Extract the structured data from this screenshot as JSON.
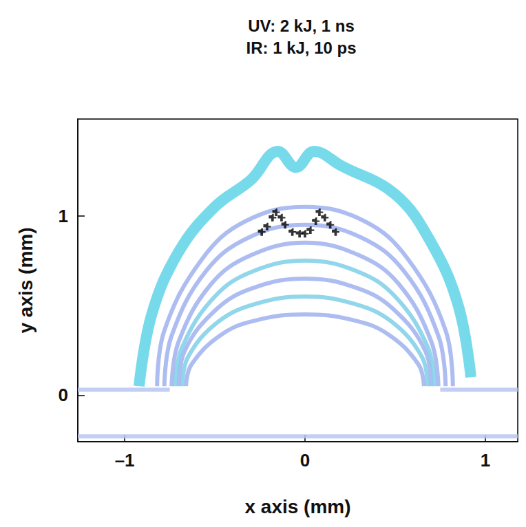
{
  "chart_data": {
    "type": "line",
    "title": "UV: 2 kJ, 1 ns",
    "subtitle": "IR: 1 kJ, 10 ps",
    "x_label": "x axis (mm)",
    "y_label": "y axis (mm)",
    "xlim": [
      -1.26,
      1.18
    ],
    "ylim": [
      -0.26,
      1.54
    ],
    "xticks": [
      {
        "value": -1,
        "label": "–1"
      },
      0,
      1
    ],
    "yticks": [
      0,
      1
    ],
    "grid": false,
    "series": [
      {
        "type": "line",
        "color": "#b9c6f2",
        "line_style": "solid",
        "x": [
          -1.26,
          -0.75
        ],
        "y": [
          0.03,
          0.03
        ]
      },
      {
        "type": "line",
        "color": "#b9c6f2",
        "line_style": "solid",
        "x": [
          0.75,
          1.18
        ],
        "y": [
          0.03,
          0.03
        ]
      },
      {
        "type": "line",
        "color": "#b9c6f2",
        "line_style": "solid",
        "x": [
          -1.26,
          1.18
        ],
        "y": [
          -0.23,
          -0.23
        ]
      },
      {
        "type": "line",
        "color": "#9fb2ee",
        "line_style": "solid",
        "x": [
          -0.66,
          -0.63,
          -0.46,
          -0.26,
          0,
          0.26,
          0.46,
          0.63,
          0.66
        ],
        "y": [
          0.05,
          0.17,
          0.34,
          0.42,
          0.45,
          0.42,
          0.34,
          0.17,
          0.05
        ]
      },
      {
        "type": "line",
        "color": "#7fcfe8",
        "line_style": "solid",
        "x": [
          -0.68,
          -0.65,
          -0.48,
          -0.27,
          0,
          0.27,
          0.48,
          0.65,
          0.68
        ],
        "y": [
          0.05,
          0.21,
          0.41,
          0.51,
          0.55,
          0.51,
          0.41,
          0.21,
          0.05
        ]
      },
      {
        "type": "line",
        "color": "#9fb2ee",
        "line_style": "solid",
        "x": [
          -0.7,
          -0.67,
          -0.49,
          -0.28,
          0,
          0.28,
          0.49,
          0.67,
          0.7
        ],
        "y": [
          0.05,
          0.24,
          0.48,
          0.6,
          0.65,
          0.6,
          0.48,
          0.24,
          0.05
        ]
      },
      {
        "type": "line",
        "color": "#7fcfe8",
        "line_style": "solid",
        "x": [
          -0.72,
          -0.68,
          -0.5,
          -0.29,
          0,
          0.29,
          0.5,
          0.68,
          0.72
        ],
        "y": [
          0.05,
          0.27,
          0.55,
          0.69,
          0.75,
          0.69,
          0.55,
          0.27,
          0.05
        ]
      },
      {
        "type": "line",
        "color": "#9fb2ee",
        "line_style": "solid",
        "x": [
          -0.74,
          -0.7,
          -0.52,
          -0.3,
          0,
          0.3,
          0.52,
          0.7,
          0.74
        ],
        "y": [
          0.05,
          0.3,
          0.62,
          0.78,
          0.85,
          0.78,
          0.62,
          0.3,
          0.05
        ]
      },
      {
        "type": "line",
        "color": "#9fb2ee",
        "line_style": "solid",
        "x": [
          -0.78,
          -0.74,
          -0.55,
          -0.31,
          0,
          0.31,
          0.55,
          0.74,
          0.78
        ],
        "y": [
          0.05,
          0.33,
          0.69,
          0.88,
          0.95,
          0.88,
          0.69,
          0.33,
          0.05
        ]
      },
      {
        "type": "line",
        "color": "#9fb2ee",
        "line_style": "solid",
        "x": [
          -0.82,
          -0.78,
          -0.57,
          -0.33,
          0,
          0.33,
          0.57,
          0.78,
          0.82
        ],
        "y": [
          0.05,
          0.36,
          0.76,
          0.97,
          1.05,
          0.97,
          0.76,
          0.36,
          0.05
        ]
      },
      {
        "type": "line",
        "color": "#5fd3e6",
        "line_style": "solid",
        "x": [
          -0.92,
          -0.85,
          -0.7,
          -0.5,
          -0.3,
          -0.15,
          -0.05,
          0.05,
          0.2,
          0.5,
          0.7,
          0.85,
          0.92
        ],
        "y": [
          0.05,
          0.45,
          0.8,
          1.05,
          1.2,
          1.36,
          1.27,
          1.36,
          1.28,
          1.12,
          0.85,
          0.5,
          0.1
        ]
      },
      {
        "type": "scatter",
        "color": "#000000",
        "marker": "plus",
        "x": [
          -0.24,
          -0.21,
          -0.18,
          -0.16,
          -0.13,
          -0.11,
          -0.07,
          -0.03,
          0.0,
          0.03,
          0.06,
          0.08,
          0.11,
          0.14,
          0.17
        ],
        "y": [
          0.91,
          0.94,
          0.99,
          1.02,
          0.99,
          0.95,
          0.91,
          0.9,
          0.9,
          0.92,
          0.97,
          1.02,
          0.99,
          0.95,
          0.91
        ]
      }
    ]
  }
}
